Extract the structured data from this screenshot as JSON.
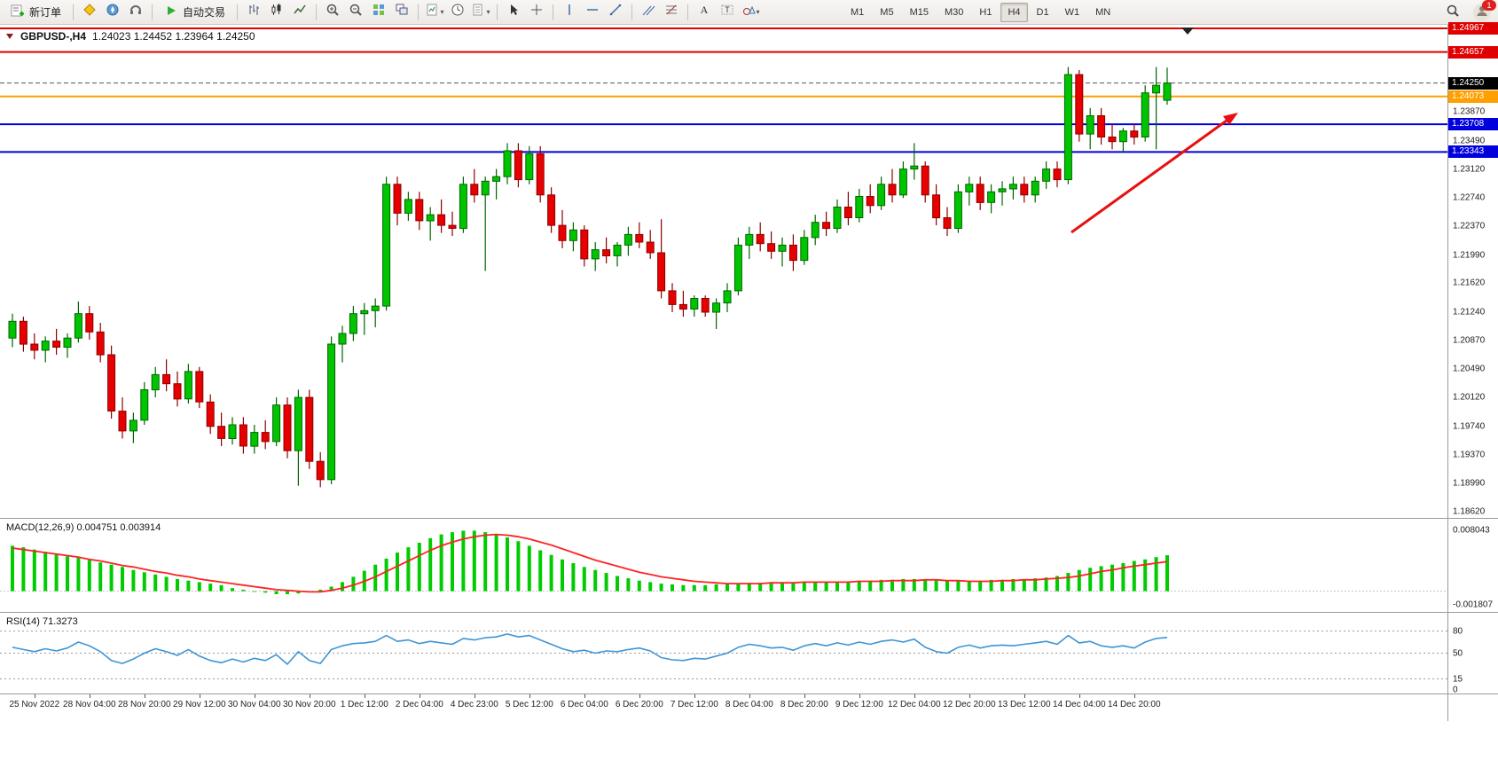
{
  "toolbar": {
    "new_order_label": "新订单",
    "autotrading_label": "自动交易",
    "timeframes": [
      "M1",
      "M5",
      "M15",
      "M30",
      "H1",
      "H4",
      "D1",
      "W1",
      "MN"
    ],
    "active_timeframe": "H4",
    "notification_count": "1"
  },
  "chart": {
    "symbol_tf": "GBPUSD-,H4",
    "ohlc_text": "1.24023 1.24452 1.23964 1.24250"
  },
  "chart_data": {
    "type": "candlestick",
    "symbol": "GBPUSD-",
    "timeframe": "H4",
    "last_ohlc": {
      "open": "1.24023",
      "high": "1.24452",
      "low": "1.23964",
      "close": "1.24250"
    },
    "price_range": {
      "top": 1.25014,
      "bottom": 1.18537
    },
    "price_axis_ticks": [
      "1.23870",
      "1.23490",
      "1.23120",
      "1.22740",
      "1.22370",
      "1.21990",
      "1.21620",
      "1.21240",
      "1.20870",
      "1.20490",
      "1.20120",
      "1.19740",
      "1.19370",
      "1.18990",
      "1.18620"
    ],
    "bid_line": {
      "label": "1.24250",
      "price": 1.2425,
      "color": "#555555",
      "box_color": "#000000"
    },
    "hlines": [
      {
        "label": "1.24967",
        "price": 1.24967,
        "color": "#e00000",
        "width": 2
      },
      {
        "label": "1.24657",
        "price": 1.24657,
        "color": "#e00000",
        "width": 2
      },
      {
        "label": "1.24073",
        "price": 1.24073,
        "color": "#ff9f00",
        "width": 2
      },
      {
        "label": "1.23708",
        "price": 1.23708,
        "color": "#0000dd",
        "width": 2
      },
      {
        "label": "1.23343",
        "price": 1.23343,
        "color": "#0000dd",
        "width": 2
      }
    ],
    "colors": {
      "up": "#00c400",
      "up_stroke": "#006600",
      "down": "#e60000",
      "down_stroke": "#8e0000",
      "background": "#ffffff",
      "axis_text": "#1c1c1c"
    },
    "candles": [
      [
        1.209,
        1.2122,
        1.2078,
        1.2112
      ],
      [
        1.2112,
        1.2118,
        1.2072,
        1.2082
      ],
      [
        1.2082,
        1.2096,
        1.2062,
        1.2074
      ],
      [
        1.2074,
        1.2092,
        1.2058,
        1.2086
      ],
      [
        1.2086,
        1.2102,
        1.2068,
        1.2078
      ],
      [
        1.2078,
        1.2096,
        1.2064,
        1.209
      ],
      [
        1.209,
        1.2138,
        1.2084,
        1.2122
      ],
      [
        1.2122,
        1.2132,
        1.2088,
        1.2098
      ],
      [
        1.2098,
        1.211,
        1.2058,
        1.2068
      ],
      [
        1.2068,
        1.208,
        1.1984,
        1.1994
      ],
      [
        1.1994,
        1.2012,
        1.1958,
        1.1968
      ],
      [
        1.1968,
        1.1992,
        1.1952,
        1.1982
      ],
      [
        1.1982,
        1.2032,
        1.1976,
        1.2022
      ],
      [
        1.2022,
        1.2052,
        1.2012,
        1.2042
      ],
      [
        1.2042,
        1.2062,
        1.202,
        1.203
      ],
      [
        1.203,
        1.2046,
        1.2,
        1.201
      ],
      [
        1.201,
        1.2056,
        1.2004,
        1.2046
      ],
      [
        1.2046,
        1.2052,
        1.1998,
        1.2006
      ],
      [
        1.2006,
        1.2016,
        1.1964,
        1.1974
      ],
      [
        1.1974,
        1.1992,
        1.1948,
        1.1958
      ],
      [
        1.1958,
        1.1986,
        1.195,
        1.1976
      ],
      [
        1.1976,
        1.1986,
        1.1938,
        1.1948
      ],
      [
        1.1948,
        1.1976,
        1.1938,
        1.1966
      ],
      [
        1.1966,
        1.1982,
        1.1944,
        1.1954
      ],
      [
        1.1954,
        1.2012,
        1.1948,
        1.2002
      ],
      [
        1.2002,
        1.2012,
        1.1932,
        1.1942
      ],
      [
        1.1942,
        1.2022,
        1.1896,
        1.2012
      ],
      [
        1.2012,
        1.2022,
        1.1918,
        1.1928
      ],
      [
        1.1928,
        1.194,
        1.1894,
        1.1904
      ],
      [
        1.1904,
        1.2092,
        1.1898,
        1.2082
      ],
      [
        1.2082,
        1.2106,
        1.2058,
        1.2096
      ],
      [
        1.2096,
        1.2132,
        1.2086,
        1.2122
      ],
      [
        1.2122,
        1.2136,
        1.2094,
        1.2126
      ],
      [
        1.2126,
        1.2142,
        1.2104,
        1.2132
      ],
      [
        1.2132,
        1.2302,
        1.2126,
        1.2292
      ],
      [
        1.2292,
        1.2302,
        1.2238,
        1.2254
      ],
      [
        1.2254,
        1.2282,
        1.2244,
        1.2272
      ],
      [
        1.2272,
        1.2282,
        1.2232,
        1.2244
      ],
      [
        1.2244,
        1.2262,
        1.2218,
        1.2252
      ],
      [
        1.2252,
        1.2272,
        1.2228,
        1.2238
      ],
      [
        1.2238,
        1.2256,
        1.2224,
        1.2234
      ],
      [
        1.2234,
        1.2302,
        1.2228,
        1.2292
      ],
      [
        1.2292,
        1.2312,
        1.2268,
        1.2278
      ],
      [
        1.2278,
        1.2302,
        1.2178,
        1.2296
      ],
      [
        1.2296,
        1.2312,
        1.2272,
        1.2302
      ],
      [
        1.2302,
        1.2346,
        1.2292,
        1.2336
      ],
      [
        1.2336,
        1.2346,
        1.2288,
        1.2298
      ],
      [
        1.2298,
        1.2342,
        1.2292,
        1.2332
      ],
      [
        1.2332,
        1.2342,
        1.2268,
        1.2278
      ],
      [
        1.2278,
        1.2288,
        1.2228,
        1.2238
      ],
      [
        1.2238,
        1.2258,
        1.2208,
        1.2218
      ],
      [
        1.2218,
        1.2242,
        1.2204,
        1.2232
      ],
      [
        1.2232,
        1.2238,
        1.2184,
        1.2194
      ],
      [
        1.2194,
        1.2216,
        1.2178,
        1.2206
      ],
      [
        1.2206,
        1.2222,
        1.2188,
        1.2198
      ],
      [
        1.2198,
        1.2216,
        1.2184,
        1.2212
      ],
      [
        1.2212,
        1.2236,
        1.2198,
        1.2226
      ],
      [
        1.2226,
        1.2242,
        1.2208,
        1.2216
      ],
      [
        1.2216,
        1.2232,
        1.2194,
        1.2202
      ],
      [
        1.2202,
        1.2246,
        1.2142,
        1.2152
      ],
      [
        1.2152,
        1.2162,
        1.2124,
        1.2134
      ],
      [
        1.2134,
        1.2152,
        1.2118,
        1.2128
      ],
      [
        1.2128,
        1.2146,
        1.2118,
        1.2142
      ],
      [
        1.2142,
        1.2146,
        1.2118,
        1.2124
      ],
      [
        1.2124,
        1.2142,
        1.2102,
        1.2136
      ],
      [
        1.2136,
        1.2162,
        1.2124,
        1.2152
      ],
      [
        1.2152,
        1.2222,
        1.2146,
        1.2212
      ],
      [
        1.2212,
        1.2236,
        1.2194,
        1.2226
      ],
      [
        1.2226,
        1.2242,
        1.2204,
        1.2214
      ],
      [
        1.2214,
        1.223,
        1.2194,
        1.2204
      ],
      [
        1.2204,
        1.2222,
        1.2184,
        1.2212
      ],
      [
        1.2212,
        1.2226,
        1.2178,
        1.2192
      ],
      [
        1.2192,
        1.2232,
        1.2186,
        1.2222
      ],
      [
        1.2222,
        1.2252,
        1.2212,
        1.2242
      ],
      [
        1.2242,
        1.2256,
        1.2224,
        1.2234
      ],
      [
        1.2234,
        1.2272,
        1.2228,
        1.2262
      ],
      [
        1.2262,
        1.2282,
        1.2238,
        1.2248
      ],
      [
        1.2248,
        1.2286,
        1.2242,
        1.2276
      ],
      [
        1.2276,
        1.2292,
        1.2254,
        1.2264
      ],
      [
        1.2264,
        1.2302,
        1.2258,
        1.2292
      ],
      [
        1.2292,
        1.2312,
        1.2268,
        1.2278
      ],
      [
        1.2278,
        1.2322,
        1.2274,
        1.2312
      ],
      [
        1.2312,
        1.2346,
        1.2298,
        1.2316
      ],
      [
        1.2316,
        1.2322,
        1.2268,
        1.2278
      ],
      [
        1.2278,
        1.2292,
        1.2238,
        1.2248
      ],
      [
        1.2248,
        1.2262,
        1.2224,
        1.2234
      ],
      [
        1.2234,
        1.2292,
        1.2228,
        1.2282
      ],
      [
        1.2282,
        1.2302,
        1.2264,
        1.2292
      ],
      [
        1.2292,
        1.2302,
        1.2258,
        1.2268
      ],
      [
        1.2268,
        1.2292,
        1.2254,
        1.2282
      ],
      [
        1.2282,
        1.2296,
        1.2264,
        1.2286
      ],
      [
        1.2286,
        1.2302,
        1.2272,
        1.2292
      ],
      [
        1.2292,
        1.2302,
        1.2268,
        1.2278
      ],
      [
        1.2278,
        1.2302,
        1.2268,
        1.2296
      ],
      [
        1.2296,
        1.2322,
        1.2286,
        1.2312
      ],
      [
        1.2312,
        1.2322,
        1.2288,
        1.2298
      ],
      [
        1.2298,
        1.2446,
        1.2292,
        1.2436
      ],
      [
        1.2436,
        1.2442,
        1.2348,
        1.2358
      ],
      [
        1.2358,
        1.2392,
        1.2338,
        1.2382
      ],
      [
        1.2382,
        1.2392,
        1.2344,
        1.2354
      ],
      [
        1.2354,
        1.2372,
        1.2338,
        1.2348
      ],
      [
        1.2348,
        1.2366,
        1.2334,
        1.2362
      ],
      [
        1.2362,
        1.2372,
        1.2344,
        1.2354
      ],
      [
        1.2354,
        1.2422,
        1.2348,
        1.2412
      ],
      [
        1.2412,
        1.2446,
        1.2338,
        1.2422
      ],
      [
        1.24023,
        1.24452,
        1.23964,
        1.2425
      ]
    ],
    "macd": {
      "label_text": "MACD(12,26,9) 0.004751 0.003914",
      "name": "MACD(12,26,9)",
      "value": "0.004751",
      "signal": "0.003914",
      "axis_max": "0.008043",
      "axis_min": "-0.001807",
      "hist_color": "#00cc00",
      "signal_color": "#ff2222",
      "hist": [
        0.006,
        0.0058,
        0.0055,
        0.0052,
        0.0049,
        0.0046,
        0.0044,
        0.0041,
        0.0038,
        0.0035,
        0.0032,
        0.0028,
        0.0025,
        0.0022,
        0.0019,
        0.0016,
        0.0014,
        0.0012,
        0.001,
        0.0008,
        0.0004,
        0.0002,
        0.0,
        -0.0002,
        -0.0004,
        -0.0004,
        -0.0003,
        -0.0001,
        0.0002,
        0.0006,
        0.0012,
        0.0019,
        0.0027,
        0.0035,
        0.0043,
        0.0051,
        0.0058,
        0.0064,
        0.007,
        0.0075,
        0.0078,
        0.008,
        0.008,
        0.0078,
        0.0075,
        0.0071,
        0.0066,
        0.006,
        0.0054,
        0.0048,
        0.0042,
        0.0037,
        0.0032,
        0.0028,
        0.0024,
        0.002,
        0.0017,
        0.0014,
        0.0012,
        0.001,
        0.0009,
        0.0008,
        0.0008,
        0.0008,
        0.0009,
        0.0009,
        0.001,
        0.0011,
        0.0011,
        0.0012,
        0.0012,
        0.0012,
        0.0012,
        0.0012,
        0.0012,
        0.0013,
        0.0013,
        0.0014,
        0.0014,
        0.0015,
        0.0015,
        0.0016,
        0.0016,
        0.0015,
        0.0014,
        0.0013,
        0.0013,
        0.0014,
        0.0014,
        0.0015,
        0.0015,
        0.0016,
        0.0016,
        0.0017,
        0.0018,
        0.002,
        0.0024,
        0.0028,
        0.0031,
        0.0033,
        0.0035,
        0.0037,
        0.004,
        0.0042,
        0.0045,
        0.004751
      ],
      "signal_line": [
        0.0057,
        0.0055,
        0.0053,
        0.0051,
        0.0049,
        0.0047,
        0.0045,
        0.0042,
        0.004,
        0.0037,
        0.0034,
        0.0032,
        0.0029,
        0.0026,
        0.0024,
        0.0021,
        0.0019,
        0.0016,
        0.0014,
        0.0012,
        0.001,
        0.0008,
        0.0006,
        0.0004,
        0.0002,
        0.0001,
        0.0,
        -0.0001,
        -0.0001,
        0.0001,
        0.0004,
        0.0008,
        0.0013,
        0.0019,
        0.0026,
        0.0033,
        0.004,
        0.0047,
        0.0054,
        0.006,
        0.0065,
        0.0069,
        0.0072,
        0.0074,
        0.0075,
        0.0074,
        0.0072,
        0.0069,
        0.0065,
        0.0061,
        0.0056,
        0.0051,
        0.0046,
        0.0041,
        0.0037,
        0.0033,
        0.0029,
        0.0025,
        0.0022,
        0.0019,
        0.0017,
        0.0015,
        0.0013,
        0.0012,
        0.0011,
        0.001,
        0.001,
        0.001,
        0.001,
        0.0011,
        0.0011,
        0.0011,
        0.0012,
        0.0012,
        0.0012,
        0.0012,
        0.0012,
        0.0013,
        0.0013,
        0.0013,
        0.0014,
        0.0014,
        0.0014,
        0.0015,
        0.0015,
        0.0014,
        0.0014,
        0.0013,
        0.0013,
        0.0013,
        0.0014,
        0.0014,
        0.0015,
        0.0015,
        0.0016,
        0.0017,
        0.0018,
        0.002,
        0.0023,
        0.0026,
        0.0028,
        0.0031,
        0.0033,
        0.0035,
        0.0037,
        0.003914
      ]
    },
    "rsi": {
      "label_text": "RSI(14) 71.3273",
      "name": "RSI(14)",
      "value": "71.3273",
      "line_color": "#3d95d6",
      "levels": [
        80,
        50,
        15
      ],
      "axis_labels": [
        "80",
        "50",
        "15",
        "0"
      ],
      "values": [
        58,
        55,
        52,
        56,
        53,
        57,
        65,
        60,
        52,
        40,
        36,
        42,
        50,
        56,
        52,
        47,
        55,
        46,
        40,
        37,
        42,
        38,
        43,
        40,
        48,
        35,
        52,
        40,
        36,
        55,
        60,
        63,
        64,
        66,
        74,
        66,
        68,
        63,
        66,
        64,
        62,
        70,
        68,
        71,
        72,
        76,
        72,
        74,
        68,
        62,
        56,
        52,
        54,
        50,
        53,
        52,
        55,
        57,
        53,
        44,
        41,
        40,
        43,
        42,
        46,
        50,
        58,
        62,
        60,
        57,
        58,
        54,
        60,
        63,
        60,
        64,
        61,
        65,
        62,
        66,
        68,
        65,
        69,
        58,
        52,
        50,
        58,
        61,
        57,
        60,
        61,
        60,
        62,
        64,
        66,
        62,
        74,
        64,
        66,
        60,
        58,
        60,
        57,
        65,
        70,
        71.3273
      ]
    },
    "time_labels": [
      "25 Nov 2022",
      "28 Nov 04:00",
      "28 Nov 20:00",
      "29 Nov 12:00",
      "30 Nov 04:00",
      "30 Nov 20:00",
      "1 Dec 12:00",
      "2 Dec 04:00",
      "4 Dec 23:00",
      "5 Dec 12:00",
      "6 Dec 04:00",
      "6 Dec 20:00",
      "7 Dec 12:00",
      "8 Dec 04:00",
      "8 Dec 20:00",
      "9 Dec 12:00",
      "12 Dec 04:00",
      "12 Dec 20:00",
      "13 Dec 12:00",
      "14 Dec 04:00",
      "14 Dec 20:00"
    ],
    "trend_arrow": {
      "color": "#e81010"
    }
  }
}
